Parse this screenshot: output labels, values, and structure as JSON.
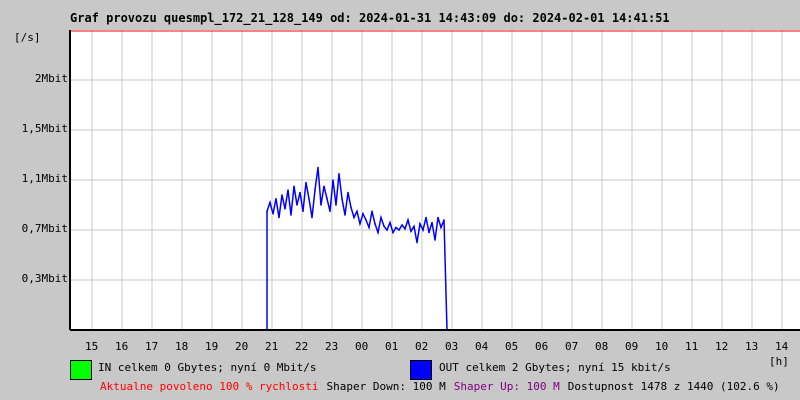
{
  "title": "Graf provozu quesmpl_172_21_128_149 od: 2024-01-31 14:43:09 do: 2024-02-01 14:41:51",
  "chart_data": {
    "type": "line",
    "title": "Graf provozu quesmpl_172_21_128_149 od: 2024-01-31 14:43:09 do: 2024-02-01 14:41:51",
    "ylabel": "[/s]",
    "xlabel": "[h]",
    "grid": true,
    "x_ticks": [
      "15",
      "16",
      "17",
      "18",
      "19",
      "20",
      "21",
      "22",
      "23",
      "00",
      "01",
      "02",
      "03",
      "04",
      "05",
      "06",
      "07",
      "08",
      "09",
      "10",
      "11",
      "12",
      "13",
      "14"
    ],
    "y_ticks": [
      {
        "value": 0.4,
        "label": "0,3Mbit"
      },
      {
        "value": 0.8,
        "label": "0,7Mbit"
      },
      {
        "value": 1.2,
        "label": "1,1Mbit"
      },
      {
        "value": 1.6,
        "label": "1,5Mbit"
      },
      {
        "value": 2.0,
        "label": "2Mbit"
      }
    ],
    "ylim": [
      0,
      2.4
    ],
    "series": [
      {
        "name": "IN",
        "color": "#00ff00",
        "points": [
          [
            "20:50",
            0
          ],
          [
            "02:50",
            0
          ]
        ]
      },
      {
        "name": "OUT",
        "color": "#0000ff",
        "points": [
          [
            "20:50",
            0.95
          ],
          [
            "20:56",
            1.02
          ],
          [
            "21:02",
            0.93
          ],
          [
            "21:08",
            1.05
          ],
          [
            "21:14",
            0.9
          ],
          [
            "21:20",
            1.08
          ],
          [
            "21:26",
            0.97
          ],
          [
            "21:32",
            1.12
          ],
          [
            "21:38",
            0.92
          ],
          [
            "21:44",
            1.15
          ],
          [
            "21:50",
            1.0
          ],
          [
            "21:56",
            1.1
          ],
          [
            "22:02",
            0.95
          ],
          [
            "22:08",
            1.18
          ],
          [
            "22:14",
            1.05
          ],
          [
            "22:20",
            0.9
          ],
          [
            "22:26",
            1.12
          ],
          [
            "22:32",
            1.3
          ],
          [
            "22:38",
            1.0
          ],
          [
            "22:44",
            1.15
          ],
          [
            "22:50",
            1.05
          ],
          [
            "22:56",
            0.95
          ],
          [
            "23:02",
            1.2
          ],
          [
            "23:08",
            1.0
          ],
          [
            "23:14",
            1.25
          ],
          [
            "23:20",
            1.05
          ],
          [
            "23:26",
            0.92
          ],
          [
            "23:32",
            1.1
          ],
          [
            "23:38",
            0.98
          ],
          [
            "23:44",
            0.9
          ],
          [
            "23:50",
            0.95
          ],
          [
            "23:56",
            0.85
          ],
          [
            "00:02",
            0.93
          ],
          [
            "00:08",
            0.88
          ],
          [
            "00:14",
            0.82
          ],
          [
            "00:20",
            0.95
          ],
          [
            "00:26",
            0.85
          ],
          [
            "00:32",
            0.78
          ],
          [
            "00:38",
            0.9
          ],
          [
            "00:44",
            0.83
          ],
          [
            "00:50",
            0.8
          ],
          [
            "00:56",
            0.86
          ],
          [
            "01:02",
            0.78
          ],
          [
            "01:08",
            0.82
          ],
          [
            "01:14",
            0.8
          ],
          [
            "01:20",
            0.84
          ],
          [
            "01:26",
            0.81
          ],
          [
            "01:32",
            0.88
          ],
          [
            "01:38",
            0.79
          ],
          [
            "01:44",
            0.83
          ],
          [
            "01:50",
            0.7
          ],
          [
            "01:56",
            0.85
          ],
          [
            "02:02",
            0.8
          ],
          [
            "02:08",
            0.9
          ],
          [
            "02:14",
            0.78
          ],
          [
            "02:20",
            0.86
          ],
          [
            "02:26",
            0.72
          ],
          [
            "02:32",
            0.9
          ],
          [
            "02:38",
            0.82
          ],
          [
            "02:44",
            0.88
          ],
          [
            "02:50",
            0
          ]
        ]
      }
    ]
  },
  "legend": {
    "in_color": "#00ff00",
    "in_text": "IN celkem 0 Gbytes; nyní 0 Mbit/s",
    "out_color": "#0000ff",
    "out_text": "OUT celkem 2 Gbytes; nyní 15 kbit/s"
  },
  "status": {
    "allowed": "Aktualne povoleno 100 % rychlosti",
    "allowed_color": "#ff0000",
    "shaper_down": "Shaper Down: 100 M",
    "shaper_up": "Shaper Up: 100 M",
    "shaper_up_color": "#800080",
    "availability": "Dostupnost 1478 z 1440 (102.6 %)"
  }
}
